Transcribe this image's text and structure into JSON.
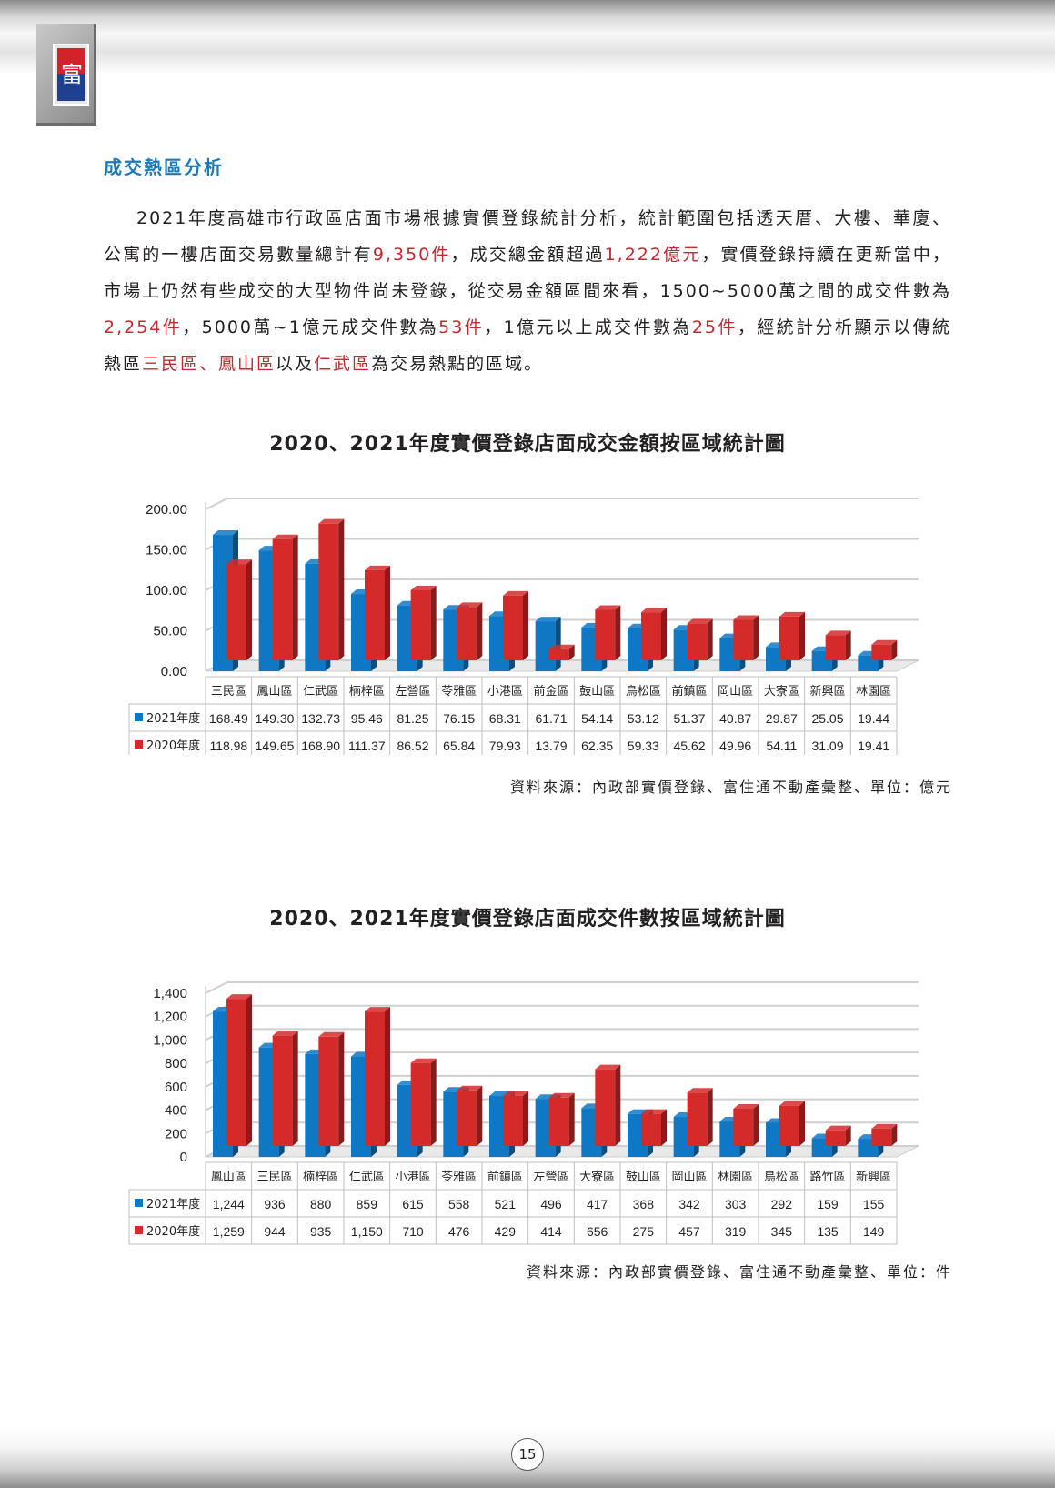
{
  "header": {
    "logo_text": "富"
  },
  "section": {
    "title": "成交熱區分析"
  },
  "paragraph": {
    "p1": "2021年度高雄市行政區店面市場根據實價登錄統計分析，統計範圍包括透天厝、大樓、華廈、公寓的一樓店面交易數量總計有",
    "h1": "9,350件",
    "p2": "，成交總金額超過",
    "h2": "1,222億元",
    "p3": "，實價登錄持續在更新當中，市場上仍然有些成交的大型物件尚未登錄，從交易金額區間來看，1500~5000萬之間的成交件數為",
    "h3": "2,254件",
    "p4": "，5000萬~1億元成交件數為",
    "h4": "53件",
    "p5": "，1億元以上成交件數為",
    "h5": "25件",
    "p6": "，經統計分析顯示以傳統熱區",
    "h6": "三民區、鳳山區",
    "p7": "以及",
    "h7": "仁武區",
    "p8": "為交易熱點的區域。"
  },
  "chart_data": [
    {
      "type": "bar",
      "title": "2020、2021年度實價登錄店面成交金額按區域統計圖",
      "source": "資料來源：內政部實價登錄、富住通不動產彙整、單位：億元",
      "categories": [
        "三民區",
        "鳳山區",
        "仁武區",
        "楠梓區",
        "左營區",
        "苓雅區",
        "小港區",
        "前金區",
        "鼓山區",
        "鳥松區",
        "前鎮區",
        "岡山區",
        "大寮區",
        "新興區",
        "林園區"
      ],
      "series": [
        {
          "name": "2021年度",
          "values": [
            168.49,
            149.3,
            132.73,
            95.46,
            81.25,
            76.15,
            68.31,
            61.71,
            54.14,
            53.12,
            51.37,
            40.87,
            29.87,
            25.05,
            19.44
          ],
          "labels": [
            "168.49",
            "149.30",
            "132.73",
            "95.46",
            "81.25",
            "76.15",
            "68.31",
            "61.71",
            "54.14",
            "53.12",
            "51.37",
            "40.87",
            "29.87",
            "25.05",
            "19.44"
          ],
          "color": "#0f78c4"
        },
        {
          "name": "2020年度",
          "values": [
            118.98,
            149.65,
            168.9,
            111.37,
            86.52,
            65.84,
            79.93,
            13.79,
            62.35,
            59.33,
            45.62,
            49.96,
            54.11,
            31.09,
            19.41
          ],
          "labels": [
            "118.98",
            "149.65",
            "168.90",
            "111.37",
            "86.52",
            "65.84",
            "79.93",
            "13.79",
            "62.35",
            "59.33",
            "45.62",
            "49.96",
            "54.11",
            "31.09",
            "19.41"
          ],
          "color": "#d42a2a"
        }
      ],
      "yticks": [
        "0.00",
        "50.00",
        "100.00",
        "150.00",
        "200.00"
      ],
      "ylim": [
        0,
        200
      ],
      "legend": "data-table"
    },
    {
      "type": "bar",
      "title": "2020、2021年度實價登錄店面成交件數按區域統計圖",
      "source": "資料來源：內政部實價登錄、富住通不動產彙整、單位：件",
      "categories": [
        "鳳山區",
        "三民區",
        "楠梓區",
        "仁武區",
        "小港區",
        "苓雅區",
        "前鎮區",
        "左營區",
        "大寮區",
        "鼓山區",
        "岡山區",
        "林園區",
        "鳥松區",
        "路竹區",
        "新興區"
      ],
      "series": [
        {
          "name": "2021年度",
          "values": [
            1244,
            936,
            880,
            859,
            615,
            558,
            521,
            496,
            417,
            368,
            342,
            303,
            292,
            159,
            155
          ],
          "labels": [
            "1,244",
            "936",
            "880",
            "859",
            "615",
            "558",
            "521",
            "496",
            "417",
            "368",
            "342",
            "303",
            "292",
            "159",
            "155"
          ],
          "color": "#0f78c4"
        },
        {
          "name": "2020年度",
          "values": [
            1259,
            944,
            935,
            1150,
            710,
            476,
            429,
            414,
            656,
            275,
            457,
            319,
            345,
            135,
            149
          ],
          "labels": [
            "1,259",
            "944",
            "935",
            "1,150",
            "710",
            "476",
            "429",
            "414",
            "656",
            "275",
            "457",
            "319",
            "345",
            "135",
            "149"
          ],
          "color": "#d42a2a"
        }
      ],
      "yticks": [
        "0",
        "200",
        "400",
        "600",
        "800",
        "1,000",
        "1,200",
        "1,400"
      ],
      "ylim": [
        0,
        1400
      ],
      "legend": "data-table"
    }
  ],
  "footer": {
    "page": "15"
  }
}
